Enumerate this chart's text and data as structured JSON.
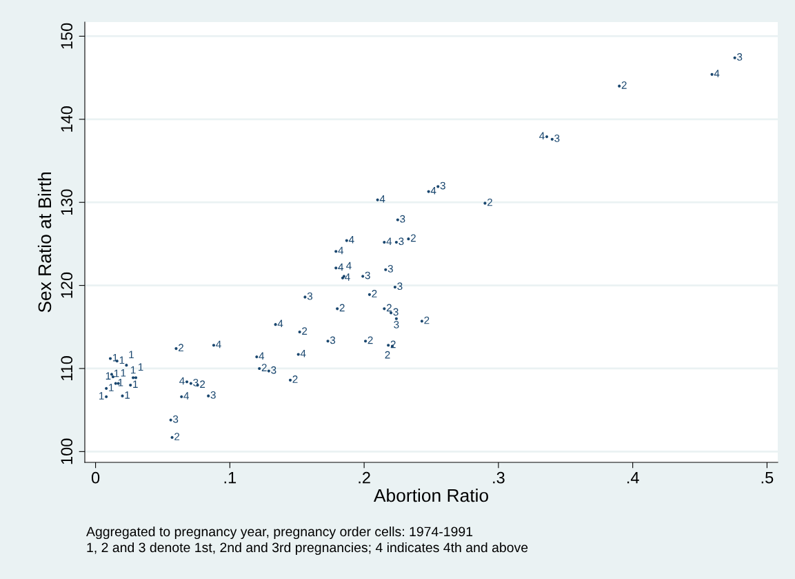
{
  "chart_data": {
    "type": "scatter",
    "xlabel": "Abortion Ratio",
    "ylabel": "Sex Ratio at Birth",
    "xlim": [
      -0.008,
      0.508
    ],
    "ylim": [
      98.7,
      151.7
    ],
    "xticks": [
      0,
      {
        "value": 0.1,
        "label": ".1"
      },
      {
        "value": 0.2,
        "label": ".2"
      },
      {
        "value": 0.3,
        "label": ".3"
      },
      {
        "value": 0.4,
        "label": ".4"
      },
      {
        "value": 0.5,
        "label": ".5"
      }
    ],
    "yticks": [
      100,
      110,
      120,
      130,
      140,
      150
    ],
    "grid": "y",
    "annotations": [
      "Aggregated to pregnancy year, pregnancy order cells: 1974-1991",
      "1, 2 and 3 denote 1st, 2nd and 3rd pregnancies; 4 indicates 4th and above"
    ],
    "series": [
      {
        "name": "1",
        "color": "#1a476f",
        "x": [
          0.008,
          0.008,
          0.015,
          0.017,
          0.02,
          0.026,
          0.028,
          0.03,
          0.013,
          0.011,
          0.016,
          0.023,
          0.012
        ],
        "values": [
          107.6,
          106.6,
          108.2,
          108.2,
          106.7,
          108.0,
          108.9,
          108.9,
          109.0,
          111.2,
          110.9,
          110.4,
          109.3
        ]
      },
      {
        "name": "2",
        "color": "#1a476f",
        "x": [
          0.233,
          0.204,
          0.18,
          0.215,
          0.243,
          0.152,
          0.201,
          0.218,
          0.221,
          0.39,
          0.29,
          0.145,
          0.076,
          0.057,
          0.06,
          0.122
        ],
        "values": [
          125.6,
          118.9,
          117.2,
          117.2,
          115.7,
          114.4,
          113.3,
          112.8,
          112.7,
          144.0,
          129.9,
          108.6,
          108.0,
          101.7,
          112.4,
          110.0
        ]
      },
      {
        "name": "3",
        "color": "#1a476f",
        "x": [
          0.224,
          0.216,
          0.199,
          0.223,
          0.156,
          0.22,
          0.224,
          0.173,
          0.255,
          0.225,
          0.476,
          0.34,
          0.071,
          0.084,
          0.056,
          0.129
        ],
        "values": [
          125.2,
          121.9,
          121.1,
          119.8,
          118.6,
          116.7,
          116.0,
          113.3,
          131.9,
          127.9,
          147.4,
          137.6,
          108.2,
          106.7,
          103.8,
          109.7
        ]
      },
      {
        "name": "4",
        "color": "#1a476f",
        "x": [
          0.187,
          0.179,
          0.215,
          0.179,
          0.184,
          0.185,
          0.134,
          0.151,
          0.12,
          0.21,
          0.248,
          0.459,
          0.336,
          0.068,
          0.064,
          0.088
        ],
        "values": [
          125.4,
          124.1,
          125.2,
          122.1,
          120.9,
          121.1,
          115.3,
          111.7,
          111.4,
          130.3,
          131.3,
          145.4,
          137.9,
          108.4,
          106.6,
          112.8
        ]
      }
    ]
  }
}
